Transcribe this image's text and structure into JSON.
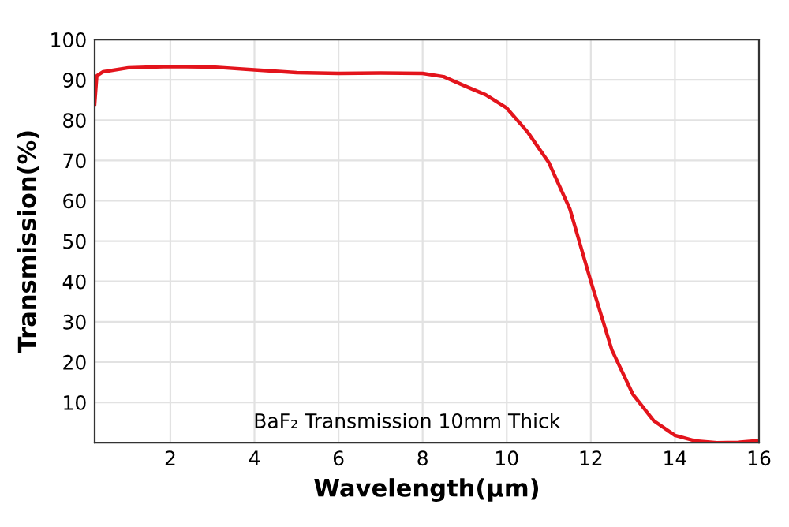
{
  "chart_data": {
    "type": "line",
    "xlabel": "Wavelength(μm)",
    "ylabel": "Transmission(%)",
    "annotations": [
      "BaF₂ Transmission 10mm Thick"
    ],
    "series": [
      {
        "color": "#e3141c",
        "x": [
          0.2,
          0.25,
          0.4,
          1,
          2,
          3,
          4,
          5,
          6,
          7,
          8,
          8.5,
          9,
          9.5,
          10,
          10.5,
          11,
          11.5,
          12,
          12.5,
          13,
          13.5,
          14,
          14.5,
          15,
          15.5,
          16
        ],
        "values": [
          84,
          91,
          92,
          93,
          93.3,
          93.2,
          92.5,
          91.8,
          91.6,
          91.7,
          91.6,
          90.8,
          88.5,
          86.3,
          83,
          77,
          69.5,
          58,
          40,
          23,
          12,
          5.4,
          1.8,
          0.4,
          0,
          0.1,
          0.5
        ]
      }
    ],
    "xlim": [
      0.2,
      16
    ],
    "xticks": [
      2,
      4,
      6,
      8,
      10,
      12,
      14,
      16
    ],
    "ylim": [
      0,
      100
    ],
    "yticks": [
      10,
      20,
      30,
      40,
      50,
      60,
      70,
      80,
      90,
      100
    ],
    "grid": true,
    "legend": false,
    "marker": "none",
    "line_style": "solid"
  }
}
